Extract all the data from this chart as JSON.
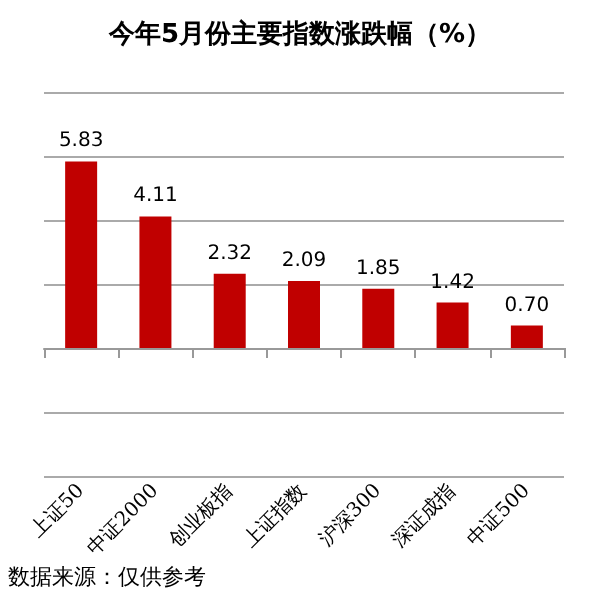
{
  "chart_data": {
    "type": "bar",
    "title": "今年5月份主要指数涨跌幅（%）",
    "categories": [
      "上证50",
      "中证2000",
      "创业板指",
      "上证指数",
      "沪深300",
      "深证成指",
      "中证500"
    ],
    "values": [
      5.83,
      4.11,
      2.32,
      2.09,
      1.85,
      1.42,
      0.7
    ],
    "value_labels": [
      "5.83",
      "4.11",
      "2.32",
      "2.09",
      "1.85",
      "1.42",
      "0.70"
    ],
    "color": "#c00000",
    "ylim": [
      -4,
      8
    ],
    "yticks": [
      {
        "value": -4,
        "label": null
      },
      {
        "value": -2,
        "label": null
      },
      {
        "value": 0,
        "label": null
      },
      {
        "value": 2,
        "label": null
      },
      {
        "value": 4,
        "label": null
      },
      {
        "value": 6,
        "label": null
      },
      {
        "value": 8,
        "label": null
      }
    ],
    "grid": "y",
    "tick_labels": "x",
    "annotations": [
      "数据来源：仅供参考"
    ]
  }
}
